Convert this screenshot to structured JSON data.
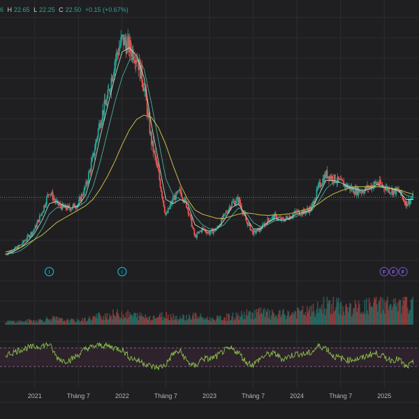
{
  "ohlc_legend": {
    "open_value": "6",
    "high_label": "H",
    "high_value": "22.65",
    "low_label": "L",
    "low_value": "22.25",
    "close_label": "C",
    "close_value": "22.50",
    "change": "+0.15 (+0.67%)"
  },
  "colors": {
    "background": "#1f1f21",
    "grid": "#2e2e32",
    "up": "#26a69a",
    "down": "#ef5350",
    "ma_fast": "#c8e6c9",
    "ma_mid": "#4db6ac",
    "ma_slow": "#c9b84a",
    "rsi": "#8bc34a",
    "rsi_band": "#3a2536",
    "price_line": "#26a69a",
    "axis_text": "#b2b5be",
    "volume": "#5d5f66",
    "event_marker": "#26c6da",
    "finance_marker": "#7e57c2"
  },
  "chart_data": {
    "type": "line",
    "title": "",
    "xlabel": "",
    "ylabel": "",
    "x_tick_labels": [
      "2021",
      "Tháng 7",
      "2022",
      "Tháng 7",
      "2023",
      "Tháng 7",
      "2024",
      "Tháng 7",
      "2025"
    ],
    "x_range": [
      "2020-09",
      "2025-05"
    ],
    "last_price_line": 22.5,
    "ylim": [
      8,
      66
    ],
    "series": [
      {
        "name": "",
        "kind": "candlestick",
        "x": [
          "2020-09",
          "2020-10",
          "2020-11",
          "2020-12",
          "2021-01",
          "2021-02",
          "2021-03",
          "2021-04",
          "2021-05",
          "2021-06",
          "2021-07",
          "2021-08",
          "2021-09",
          "2021-10",
          "2021-11",
          "2021-12",
          "2022-01",
          "2022-02",
          "2022-03",
          "2022-04",
          "2022-05",
          "2022-06",
          "2022-07",
          "2022-08",
          "2022-09",
          "2022-10",
          "2022-11",
          "2022-12",
          "2023-01",
          "2023-02",
          "2023-03",
          "2023-04",
          "2023-05",
          "2023-06",
          "2023-07",
          "2023-08",
          "2023-09",
          "2023-10",
          "2023-11",
          "2023-12",
          "2024-01",
          "2024-02",
          "2024-03",
          "2024-04",
          "2024-05",
          "2024-06",
          "2024-07",
          "2024-08",
          "2024-09",
          "2024-10",
          "2024-11",
          "2024-12",
          "2025-01",
          "2025-02",
          "2025-03",
          "2025-04",
          "2025-05"
        ],
        "values": [
          9,
          10,
          11,
          13,
          15,
          19,
          24,
          21,
          20,
          20,
          21,
          25,
          32,
          41,
          46,
          55,
          60,
          58,
          56,
          49,
          36,
          28,
          18,
          22,
          24,
          20,
          13,
          15,
          14,
          15,
          18,
          21,
          22,
          17,
          14,
          15,
          17,
          18,
          17,
          18,
          19,
          19,
          20,
          25,
          28,
          27,
          26,
          25,
          24,
          24,
          25,
          26,
          25,
          24,
          24,
          21,
          22.5
        ]
      },
      {
        "name": "",
        "kind": "ma_fast",
        "values": [
          9,
          9.5,
          10.5,
          12,
          14,
          17,
          21,
          21.5,
          20.5,
          20,
          20.5,
          23,
          29,
          37,
          44,
          51,
          57,
          58,
          56,
          51,
          40,
          31,
          22,
          21,
          22,
          21,
          16,
          15,
          14.5,
          15,
          17,
          20,
          21,
          18,
          15,
          15,
          16.5,
          17.5,
          17,
          17.5,
          18.5,
          19,
          19.5,
          23,
          26.5,
          26.5,
          26,
          25,
          24.5,
          24,
          24.5,
          25.5,
          25,
          24.5,
          24,
          22,
          22
        ]
      },
      {
        "name": "",
        "kind": "ma_mid",
        "values": [
          9,
          9.2,
          9.8,
          11,
          12.5,
          15,
          18.5,
          20,
          20.2,
          20,
          20.3,
          21.5,
          25,
          31,
          38,
          45,
          51,
          55,
          56,
          53,
          45,
          36,
          27,
          23,
          22,
          21.5,
          18,
          16,
          15,
          15,
          16,
          18,
          20,
          19,
          16.5,
          15.5,
          16,
          17,
          17,
          17.3,
          18,
          18.7,
          19.2,
          21.5,
          24.5,
          26,
          26,
          25.3,
          24.8,
          24.3,
          24.4,
          25,
          25,
          24.7,
          24.3,
          23,
          22.5
        ]
      },
      {
        "name": "",
        "kind": "ma_slow",
        "values": [
          9.5,
          10,
          10.5,
          11.5,
          12.5,
          13.5,
          15,
          16.5,
          17.5,
          18.5,
          19.5,
          20.5,
          22,
          24.5,
          27.5,
          31,
          35,
          38.5,
          41,
          42,
          41.5,
          39,
          35,
          30,
          25.5,
          22,
          19.5,
          18.5,
          18,
          17.5,
          17.5,
          18,
          18.5,
          18.8,
          18.6,
          18.3,
          18.2,
          18.3,
          18.4,
          18.6,
          19,
          19.5,
          20,
          21,
          22.3,
          23.3,
          24,
          24.6,
          25,
          25,
          25,
          25,
          24.8,
          24.6,
          24.3,
          23.7,
          23.2
        ]
      }
    ],
    "volume": {
      "name": "",
      "values": [
        1,
        1,
        1,
        1.2,
        1.3,
        1.5,
        2,
        1.8,
        1.4,
        1.3,
        1.3,
        1.6,
        2.2,
        2.8,
        3,
        3.2,
        3.5,
        3,
        2.8,
        2.6,
        2.4,
        2.5,
        3,
        2.6,
        2.2,
        2.4,
        2.8,
        2.2,
        1.8,
        1.9,
        2.2,
        2.5,
        2.8,
        3.2,
        3.6,
        3.8,
        3.4,
        3,
        3.2,
        3.4,
        3.8,
        4,
        4.2,
        5,
        6.5,
        6,
        5.5,
        5,
        5.2,
        5.4,
        5.8,
        6.2,
        6.8,
        6,
        5.6,
        6.4,
        5.8
      ]
    },
    "rsi": {
      "name": "",
      "ylim": [
        0,
        100
      ],
      "upper_band": 70,
      "lower_band": 30,
      "values": [
        55,
        60,
        66,
        70,
        72,
        74,
        78,
        50,
        42,
        45,
        55,
        68,
        72,
        76,
        74,
        70,
        66,
        50,
        44,
        38,
        30,
        28,
        34,
        58,
        62,
        40,
        30,
        48,
        46,
        52,
        64,
        68,
        60,
        40,
        34,
        48,
        56,
        58,
        46,
        52,
        58,
        56,
        60,
        74,
        70,
        52,
        48,
        44,
        46,
        48,
        56,
        58,
        50,
        44,
        46,
        28,
        38
      ]
    },
    "event_markers": [
      {
        "label": "I",
        "x": "2021-03"
      },
      {
        "label": "I",
        "x": "2022-01"
      },
      {
        "label": "F",
        "x": "2025-01"
      },
      {
        "label": "F",
        "x": "2025-02"
      },
      {
        "label": "F",
        "x": "2025-03"
      }
    ],
    "grid": true
  }
}
